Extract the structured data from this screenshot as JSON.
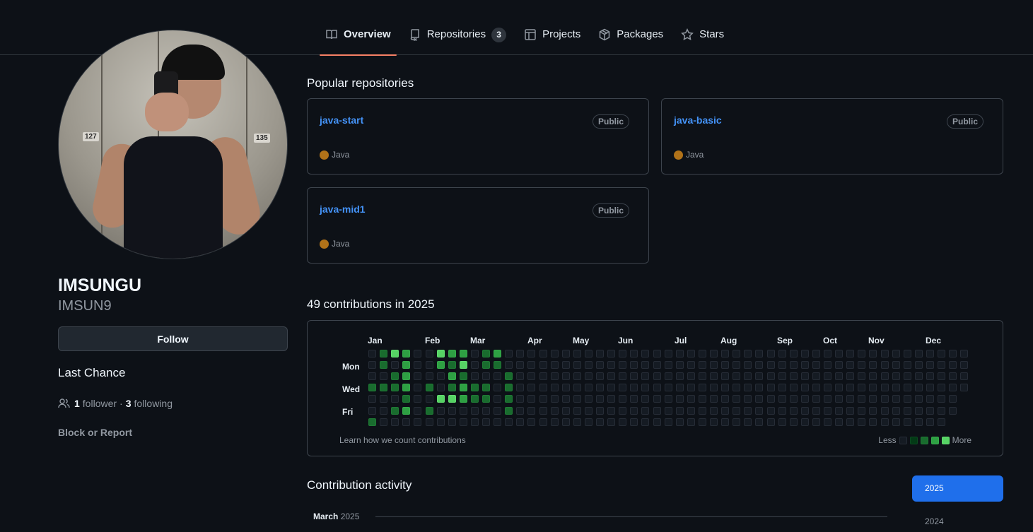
{
  "tabs": [
    {
      "label": "Overview",
      "icon": "book-icon",
      "active": true
    },
    {
      "label": "Repositories",
      "icon": "repo-icon",
      "count": "3"
    },
    {
      "label": "Projects",
      "icon": "table-icon"
    },
    {
      "label": "Packages",
      "icon": "package-icon"
    },
    {
      "label": "Stars",
      "icon": "star-icon"
    }
  ],
  "profile": {
    "name": "IMSUNGU",
    "login": "IMSUN9",
    "follow_label": "Follow",
    "bio": "Last Chance",
    "followers_count": "1",
    "followers_label": "follower",
    "separator": "·",
    "following_count": "3",
    "following_label": "following",
    "block_label": "Block or Report",
    "avatar_tags": [
      "127",
      "135"
    ]
  },
  "popular": {
    "title": "Popular repositories",
    "repos": [
      {
        "name": "java-start",
        "visibility": "Public",
        "language": "Java"
      },
      {
        "name": "java-basic",
        "visibility": "Public",
        "language": "Java"
      },
      {
        "name": "java-mid1",
        "visibility": "Public",
        "language": "Java"
      }
    ],
    "language_color": "#b07219"
  },
  "contributions": {
    "title": "49 contributions in 2025",
    "months": [
      "Jan",
      "Feb",
      "Mar",
      "Apr",
      "May",
      "Jun",
      "Jul",
      "Aug",
      "Sep",
      "Oct",
      "Nov",
      "Dec"
    ],
    "days": [
      "Mon",
      "Wed",
      "Fri"
    ],
    "learn_label": "Learn how we count contributions",
    "less_label": "Less",
    "more_label": "More",
    "active_cells": [
      [
        1,
        0,
        2
      ],
      [
        2,
        0,
        4
      ],
      [
        3,
        0,
        3
      ],
      [
        6,
        0,
        4
      ],
      [
        7,
        0,
        3
      ],
      [
        8,
        0,
        3
      ],
      [
        10,
        0,
        2
      ],
      [
        11,
        0,
        3
      ],
      [
        1,
        1,
        2
      ],
      [
        3,
        1,
        3
      ],
      [
        6,
        1,
        3
      ],
      [
        7,
        1,
        2
      ],
      [
        8,
        1,
        4
      ],
      [
        10,
        1,
        2
      ],
      [
        11,
        1,
        2
      ],
      [
        2,
        2,
        2
      ],
      [
        3,
        2,
        3
      ],
      [
        7,
        2,
        3
      ],
      [
        8,
        2,
        2
      ],
      [
        12,
        2,
        2
      ],
      [
        0,
        3,
        2
      ],
      [
        1,
        3,
        2
      ],
      [
        2,
        3,
        2
      ],
      [
        3,
        3,
        3
      ],
      [
        5,
        3,
        2
      ],
      [
        7,
        3,
        2
      ],
      [
        8,
        3,
        3
      ],
      [
        9,
        3,
        2
      ],
      [
        10,
        3,
        2
      ],
      [
        12,
        3,
        2
      ],
      [
        3,
        4,
        2
      ],
      [
        6,
        4,
        4
      ],
      [
        7,
        4,
        4
      ],
      [
        8,
        4,
        3
      ],
      [
        9,
        4,
        2
      ],
      [
        10,
        4,
        2
      ],
      [
        12,
        4,
        2
      ],
      [
        2,
        5,
        2
      ],
      [
        3,
        5,
        3
      ],
      [
        5,
        5,
        2
      ],
      [
        12,
        5,
        2
      ],
      [
        0,
        6,
        2
      ]
    ]
  },
  "activity": {
    "title": "Contribution activity",
    "month": "March",
    "year": "2025",
    "years": [
      "2025",
      "2024"
    ]
  }
}
